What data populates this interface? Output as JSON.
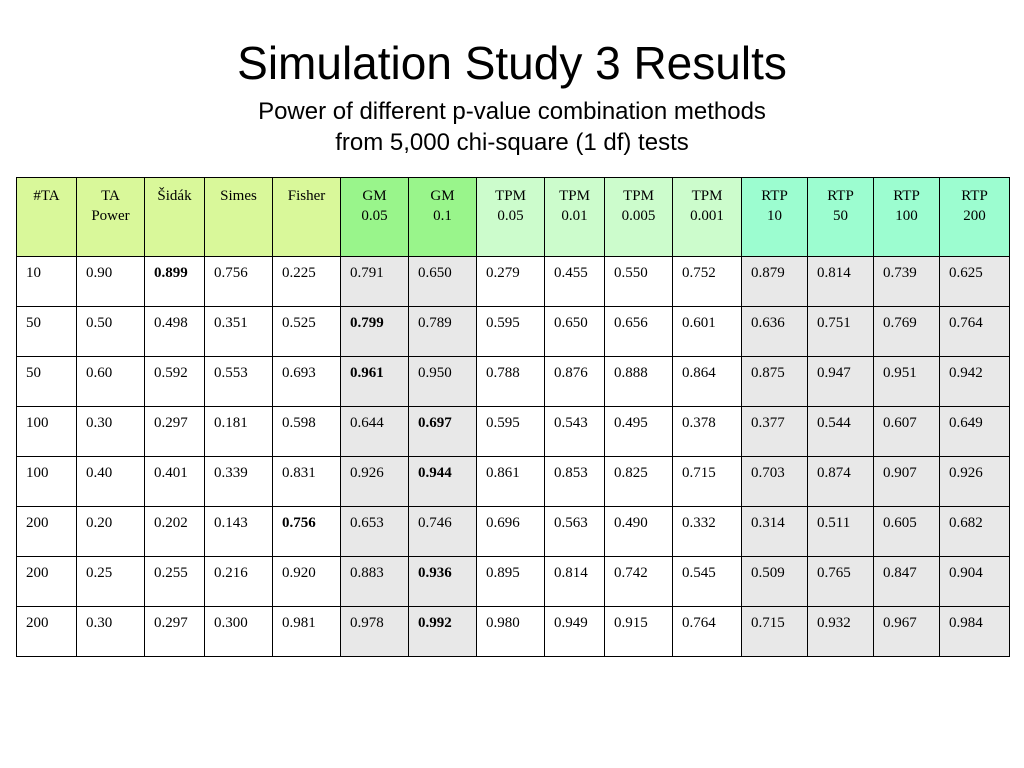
{
  "title": "Simulation Study 3 Results",
  "subtitle_line1": "Power of different p-value combination methods",
  "subtitle_line2": "from 5,000 chi-square (1 df) tests",
  "colors": {
    "header_lime": "#d9f89a",
    "header_green": "#99f58b",
    "header_pale_green": "#ccfccc",
    "header_mint": "#9cfdd0",
    "shaded_cell": "#e8e8e8"
  },
  "table": {
    "headers": [
      [
        "#TA"
      ],
      [
        "TA",
        "Power"
      ],
      [
        "Šidák"
      ],
      [
        "Simes"
      ],
      [
        "Fisher"
      ],
      [
        "GM",
        "0.05"
      ],
      [
        "GM",
        "0.1"
      ],
      [
        "TPM",
        "0.05"
      ],
      [
        "TPM",
        "0.01"
      ],
      [
        "TPM",
        "0.005"
      ],
      [
        "TPM",
        "0.001"
      ],
      [
        "RTP",
        "10"
      ],
      [
        "RTP",
        "50"
      ],
      [
        "RTP",
        "100"
      ],
      [
        "RTP",
        "200"
      ]
    ],
    "rows": [
      [
        "10",
        "0.90",
        "0.899",
        "0.756",
        "0.225",
        "0.791",
        "0.650",
        "0.279",
        "0.455",
        "0.550",
        "0.752",
        "0.879",
        "0.814",
        "0.739",
        "0.625"
      ],
      [
        "50",
        "0.50",
        "0.498",
        "0.351",
        "0.525",
        "0.799",
        "0.789",
        "0.595",
        "0.650",
        "0.656",
        "0.601",
        "0.636",
        "0.751",
        "0.769",
        "0.764"
      ],
      [
        "50",
        "0.60",
        "0.592",
        "0.553",
        "0.693",
        "0.961",
        "0.950",
        "0.788",
        "0.876",
        "0.888",
        "0.864",
        "0.875",
        "0.947",
        "0.951",
        "0.942"
      ],
      [
        "100",
        "0.30",
        "0.297",
        "0.181",
        "0.598",
        "0.644",
        "0.697",
        "0.595",
        "0.543",
        "0.495",
        "0.378",
        "0.377",
        "0.544",
        "0.607",
        "0.649"
      ],
      [
        "100",
        "0.40",
        "0.401",
        "0.339",
        "0.831",
        "0.926",
        "0.944",
        "0.861",
        "0.853",
        "0.825",
        "0.715",
        "0.703",
        "0.874",
        "0.907",
        "0.926"
      ],
      [
        "200",
        "0.20",
        "0.202",
        "0.143",
        "0.756",
        "0.653",
        "0.746",
        "0.696",
        "0.563",
        "0.490",
        "0.332",
        "0.314",
        "0.511",
        "0.605",
        "0.682"
      ],
      [
        "200",
        "0.25",
        "0.255",
        "0.216",
        "0.920",
        "0.883",
        "0.936",
        "0.895",
        "0.814",
        "0.742",
        "0.545",
        "0.509",
        "0.765",
        "0.847",
        "0.904"
      ],
      [
        "200",
        "0.30",
        "0.297",
        "0.300",
        "0.981",
        "0.978",
        "0.992",
        "0.980",
        "0.949",
        "0.915",
        "0.764",
        "0.715",
        "0.932",
        "0.967",
        "0.984"
      ]
    ],
    "bold_column_per_row": [
      2,
      5,
      5,
      6,
      6,
      4,
      6,
      6
    ]
  }
}
